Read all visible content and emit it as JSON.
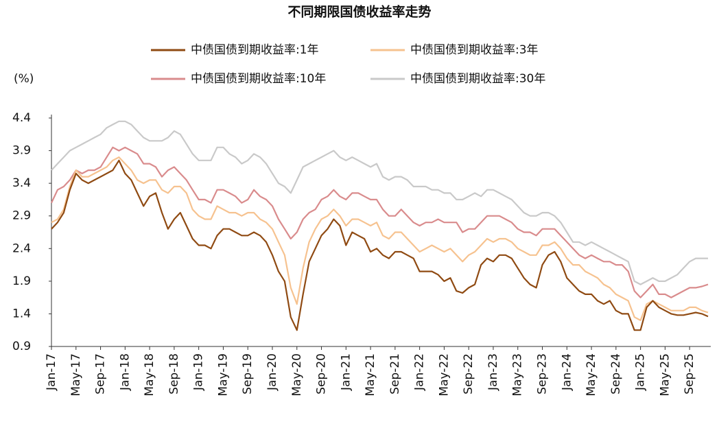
{
  "chart_data": {
    "type": "line",
    "title": "不同期限国债收益率走势",
    "y_label": "(%)",
    "categories": [
      "Jan-17",
      null,
      null,
      null,
      "May-17",
      null,
      null,
      null,
      "Sep-17",
      null,
      null,
      null,
      "Jan-18",
      null,
      null,
      null,
      "May-18",
      null,
      null,
      null,
      "Sep-18",
      null,
      null,
      null,
      "Jan-19",
      null,
      null,
      null,
      "May-19",
      null,
      null,
      null,
      "Sep-19",
      null,
      null,
      null,
      "Jan-20",
      null,
      null,
      null,
      "May-20",
      null,
      null,
      null,
      "Sep-20",
      null,
      null,
      null,
      "Jan-21",
      null,
      null,
      null,
      "May-21",
      null,
      null,
      null,
      "Sep-21",
      null,
      null,
      null,
      "Jan-22",
      null,
      null,
      null,
      "May-22",
      null,
      null,
      null,
      "Sep-22",
      null,
      null,
      null,
      "Jan-23",
      null,
      null,
      null,
      "May-23",
      null,
      null,
      null,
      "Sep-23",
      null,
      null,
      null,
      "Jan-24",
      null,
      null,
      null,
      "May-24",
      null,
      null,
      null,
      "Sep-24",
      null,
      null,
      null,
      "Jan-25",
      null,
      null,
      null,
      "May-25",
      null,
      null,
      null,
      "Sep-25",
      null,
      null,
      null
    ],
    "series": [
      {
        "name": "中债国债到期收益率:1年",
        "color": "#8f4a12",
        "values": [
          2.7,
          2.8,
          2.95,
          3.3,
          3.55,
          3.45,
          3.4,
          3.45,
          3.5,
          3.55,
          3.6,
          3.75,
          3.55,
          3.45,
          3.25,
          3.05,
          3.2,
          3.25,
          2.95,
          2.7,
          2.85,
          2.95,
          2.75,
          2.55,
          2.45,
          2.45,
          2.4,
          2.6,
          2.7,
          2.7,
          2.65,
          2.6,
          2.6,
          2.65,
          2.6,
          2.5,
          2.3,
          2.05,
          1.9,
          1.35,
          1.15,
          1.7,
          2.2,
          2.4,
          2.6,
          2.7,
          2.85,
          2.75,
          2.45,
          2.65,
          2.6,
          2.55,
          2.35,
          2.4,
          2.3,
          2.25,
          2.35,
          2.35,
          2.3,
          2.25,
          2.05,
          2.05,
          2.05,
          2.0,
          1.9,
          1.95,
          1.75,
          1.72,
          1.8,
          1.85,
          2.15,
          2.25,
          2.2,
          2.3,
          2.3,
          2.25,
          2.1,
          1.95,
          1.85,
          1.8,
          2.15,
          2.3,
          2.35,
          2.2,
          1.95,
          1.85,
          1.75,
          1.7,
          1.7,
          1.6,
          1.55,
          1.6,
          1.45,
          1.4,
          1.4,
          1.15,
          1.15,
          1.5,
          1.6,
          1.5,
          1.45,
          1.4,
          1.38,
          1.38,
          1.4,
          1.42,
          1.4,
          1.36
        ]
      },
      {
        "name": "中债国债到期收益率:3年",
        "color": "#f6c28f",
        "values": [
          2.8,
          2.85,
          3.0,
          3.35,
          3.6,
          3.5,
          3.5,
          3.55,
          3.6,
          3.65,
          3.75,
          3.8,
          3.7,
          3.6,
          3.45,
          3.4,
          3.45,
          3.45,
          3.3,
          3.25,
          3.35,
          3.35,
          3.25,
          3.0,
          2.9,
          2.85,
          2.85,
          3.05,
          3.0,
          2.95,
          2.95,
          2.9,
          2.95,
          2.95,
          2.85,
          2.8,
          2.7,
          2.5,
          2.3,
          1.8,
          1.55,
          2.1,
          2.5,
          2.7,
          2.85,
          2.9,
          3.0,
          2.9,
          2.75,
          2.85,
          2.85,
          2.8,
          2.75,
          2.8,
          2.6,
          2.55,
          2.65,
          2.65,
          2.55,
          2.45,
          2.35,
          2.4,
          2.45,
          2.4,
          2.35,
          2.4,
          2.3,
          2.2,
          2.3,
          2.35,
          2.45,
          2.55,
          2.5,
          2.55,
          2.55,
          2.5,
          2.4,
          2.35,
          2.3,
          2.3,
          2.45,
          2.45,
          2.5,
          2.4,
          2.25,
          2.15,
          2.15,
          2.05,
          2.0,
          1.95,
          1.85,
          1.8,
          1.7,
          1.65,
          1.6,
          1.35,
          1.3,
          1.55,
          1.6,
          1.55,
          1.5,
          1.45,
          1.45,
          1.45,
          1.5,
          1.5,
          1.45,
          1.42
        ]
      },
      {
        "name": "中债国债到期收益率:10年",
        "color": "#d98b8c",
        "values": [
          3.1,
          3.3,
          3.35,
          3.45,
          3.6,
          3.55,
          3.6,
          3.6,
          3.65,
          3.8,
          3.95,
          3.9,
          3.95,
          3.9,
          3.85,
          3.7,
          3.7,
          3.65,
          3.5,
          3.6,
          3.65,
          3.55,
          3.45,
          3.3,
          3.15,
          3.15,
          3.1,
          3.3,
          3.3,
          3.25,
          3.2,
          3.1,
          3.15,
          3.3,
          3.2,
          3.15,
          3.05,
          2.85,
          2.7,
          2.55,
          2.65,
          2.85,
          2.95,
          3.0,
          3.15,
          3.2,
          3.3,
          3.2,
          3.15,
          3.25,
          3.25,
          3.2,
          3.15,
          3.15,
          3.0,
          2.9,
          2.9,
          3.0,
          2.9,
          2.8,
          2.75,
          2.8,
          2.8,
          2.85,
          2.8,
          2.8,
          2.8,
          2.65,
          2.7,
          2.7,
          2.8,
          2.9,
          2.9,
          2.9,
          2.85,
          2.8,
          2.7,
          2.65,
          2.65,
          2.6,
          2.7,
          2.7,
          2.7,
          2.6,
          2.5,
          2.4,
          2.3,
          2.25,
          2.3,
          2.25,
          2.2,
          2.2,
          2.15,
          2.15,
          2.05,
          1.75,
          1.65,
          1.75,
          1.85,
          1.7,
          1.7,
          1.65,
          1.7,
          1.75,
          1.8,
          1.8,
          1.82,
          1.85
        ]
      },
      {
        "name": "中债国债到期收益率:30年",
        "color": "#c9c9c9",
        "values": [
          3.6,
          3.7,
          3.8,
          3.9,
          3.95,
          4.0,
          4.05,
          4.1,
          4.15,
          4.25,
          4.3,
          4.35,
          4.35,
          4.3,
          4.2,
          4.1,
          4.05,
          4.05,
          4.05,
          4.1,
          4.2,
          4.15,
          4.0,
          3.85,
          3.75,
          3.75,
          3.75,
          3.95,
          3.95,
          3.85,
          3.8,
          3.7,
          3.75,
          3.85,
          3.8,
          3.7,
          3.55,
          3.4,
          3.35,
          3.25,
          3.45,
          3.65,
          3.7,
          3.75,
          3.8,
          3.85,
          3.9,
          3.8,
          3.75,
          3.8,
          3.75,
          3.7,
          3.65,
          3.7,
          3.5,
          3.45,
          3.5,
          3.5,
          3.45,
          3.35,
          3.35,
          3.35,
          3.3,
          3.3,
          3.25,
          3.25,
          3.15,
          3.15,
          3.2,
          3.25,
          3.2,
          3.3,
          3.3,
          3.25,
          3.2,
          3.15,
          3.05,
          2.95,
          2.9,
          2.9,
          2.95,
          2.95,
          2.9,
          2.8,
          2.65,
          2.5,
          2.5,
          2.45,
          2.5,
          2.45,
          2.4,
          2.35,
          2.3,
          2.25,
          2.2,
          1.9,
          1.85,
          1.9,
          1.95,
          1.9,
          1.9,
          1.95,
          2.0,
          2.1,
          2.2,
          2.25,
          2.25,
          2.25
        ]
      }
    ],
    "ylim": [
      0.9,
      4.4
    ],
    "yticks": [
      0.9,
      1.4,
      1.9,
      2.4,
      2.9,
      3.4,
      3.9,
      4.4
    ],
    "grid": false,
    "legend": "top"
  }
}
